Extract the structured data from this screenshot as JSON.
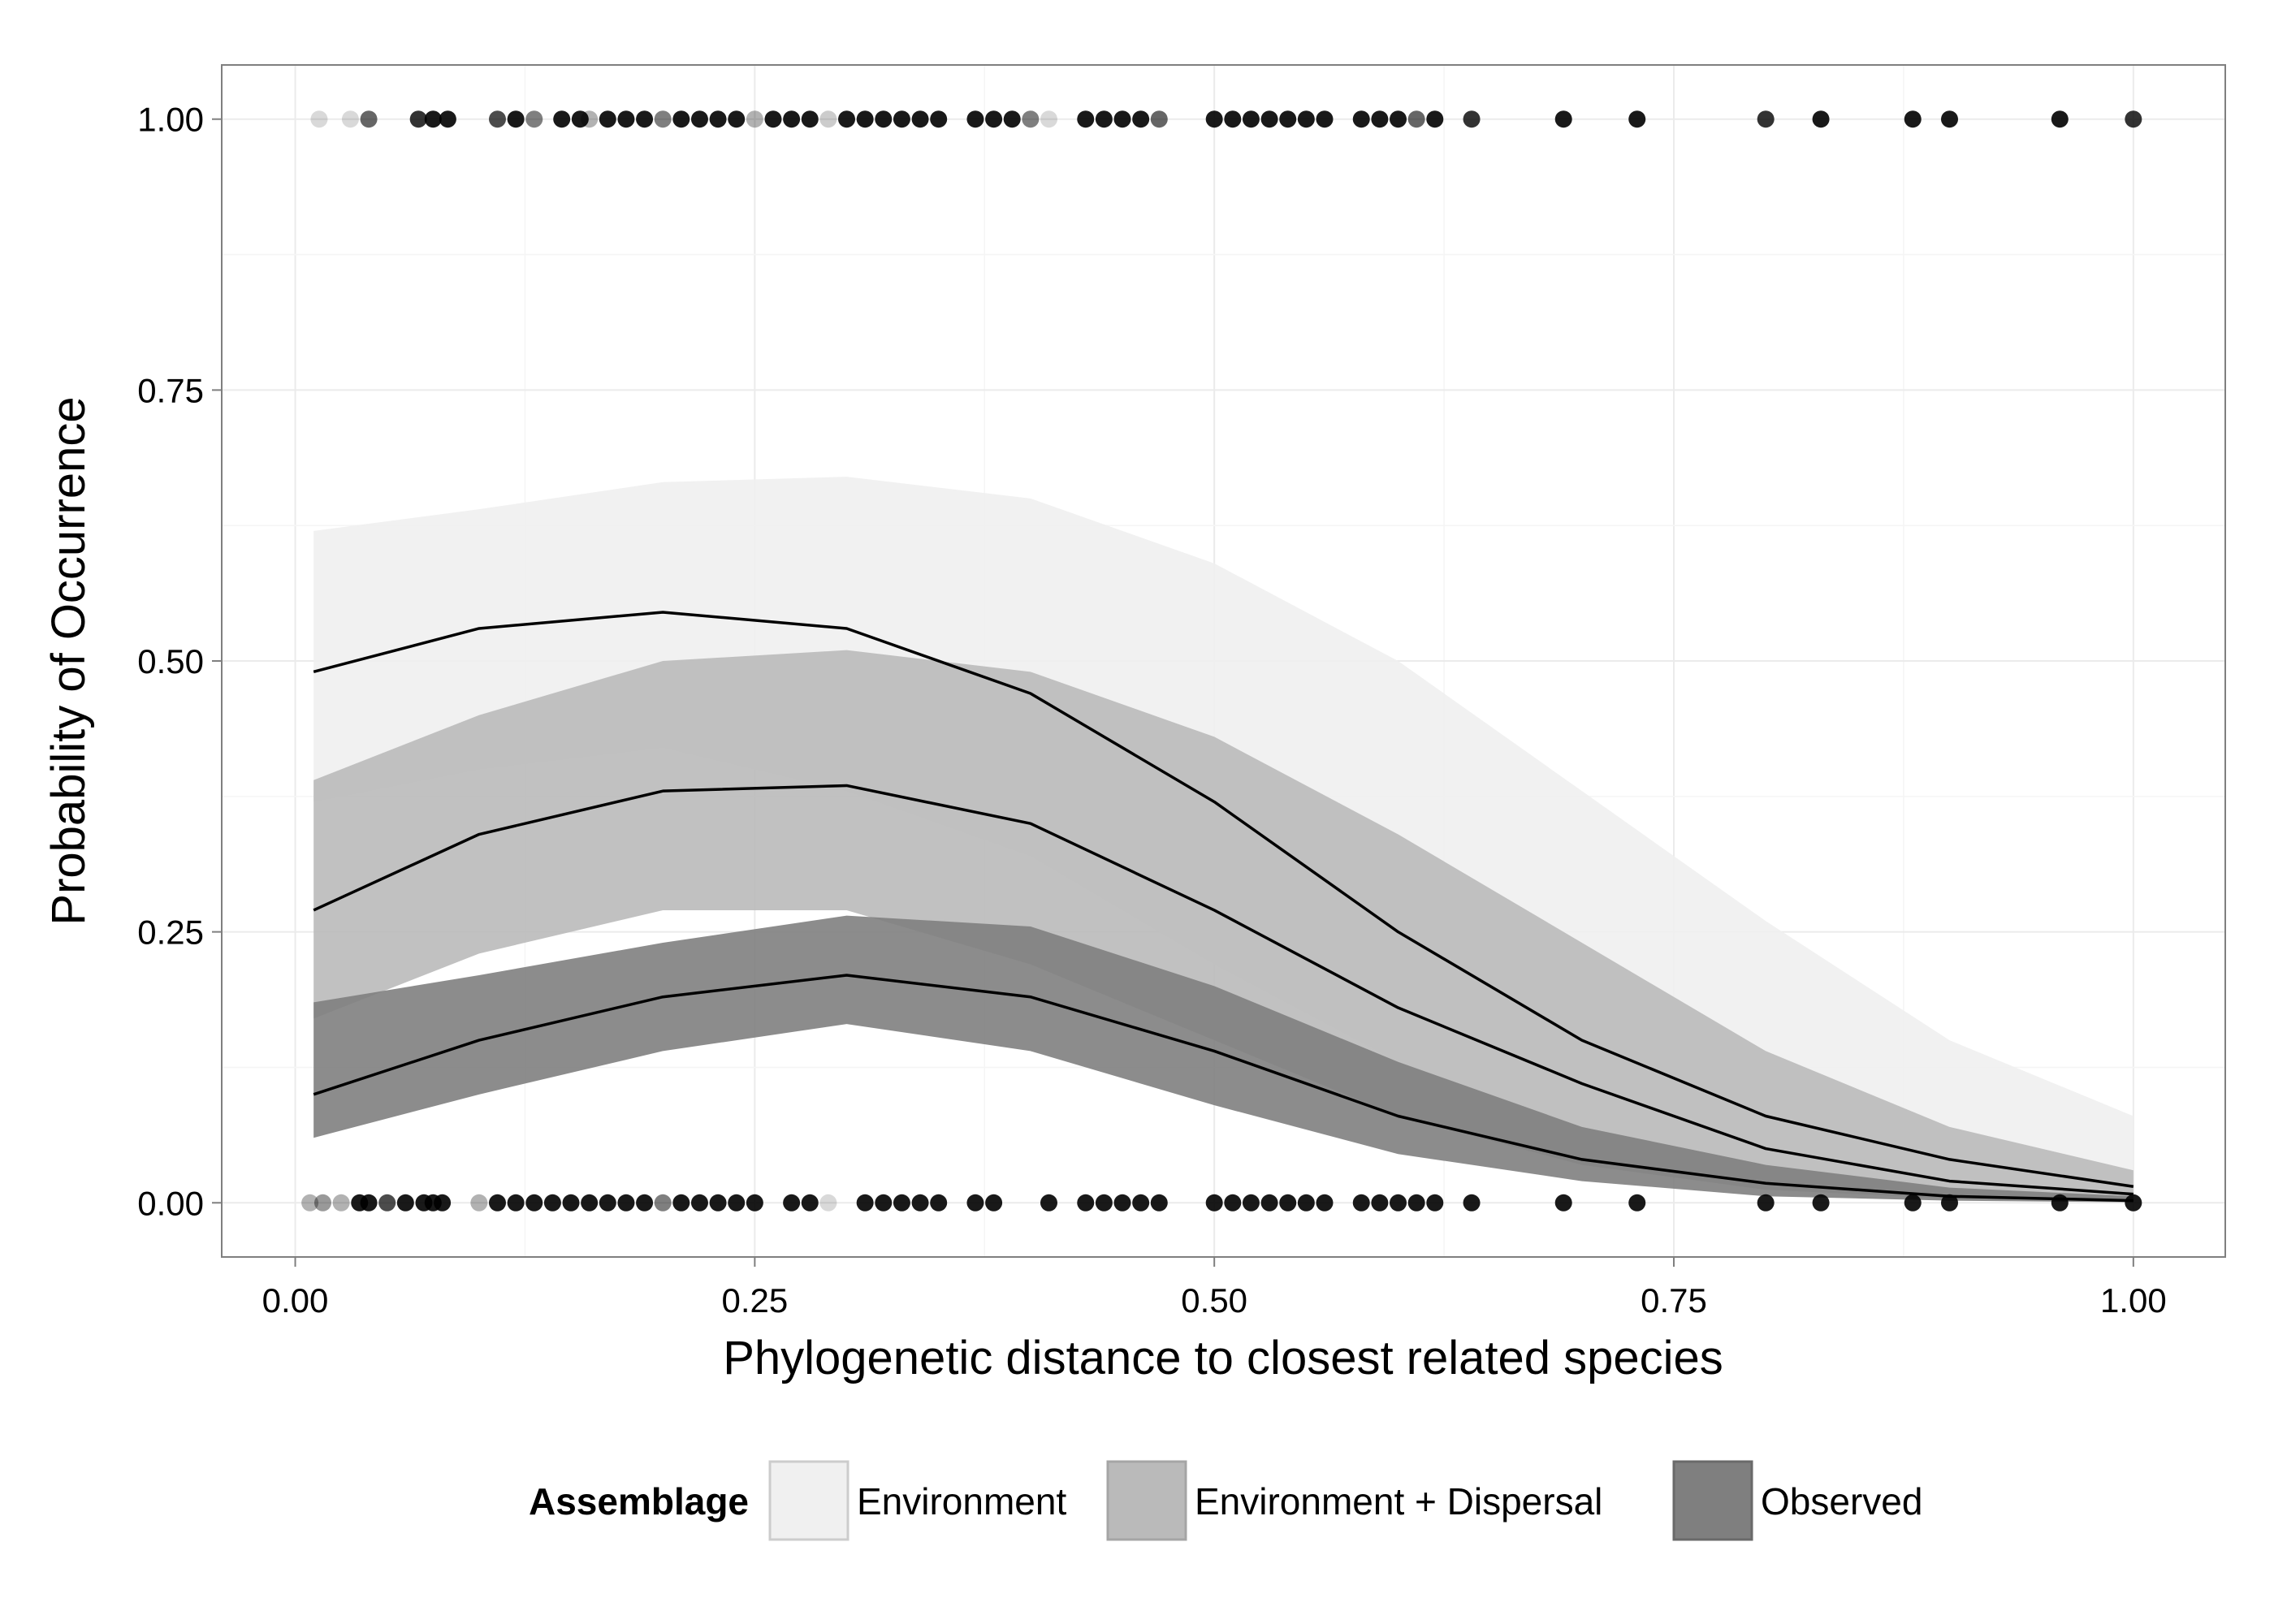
{
  "chart_data": {
    "type": "line",
    "xlabel": "Phylogenetic distance to closest related species",
    "ylabel": "Probability of Occurrence",
    "xlim": [
      -0.04,
      1.05
    ],
    "ylim": [
      -0.05,
      1.05
    ],
    "x_ticks": [
      0,
      0.25,
      0.5,
      0.75,
      1.0
    ],
    "x_tick_labels": [
      "0.00",
      "0.25",
      "0.50",
      "0.75",
      "1.00"
    ],
    "y_ticks": [
      0,
      0.25,
      0.5,
      0.75,
      1.0
    ],
    "y_tick_labels": [
      "0.00",
      "0.25",
      "0.50",
      "0.75",
      "1.00"
    ],
    "grid": true,
    "legend": {
      "title": "Assemblage",
      "placement": "bottom"
    },
    "series": [
      {
        "name": "Environment",
        "fill": "#f0f0f0",
        "x": [
          0.01,
          0.1,
          0.2,
          0.3,
          0.4,
          0.5,
          0.6,
          0.7,
          0.8,
          0.9,
          1.0
        ],
        "fit": [
          0.49,
          0.53,
          0.545,
          0.53,
          0.47,
          0.37,
          0.25,
          0.15,
          0.08,
          0.04,
          0.015
        ],
        "lower": [
          0.37,
          0.4,
          0.42,
          0.38,
          0.32,
          0.22,
          0.13,
          0.07,
          0.03,
          0.01,
          0.003
        ],
        "upper": [
          0.62,
          0.64,
          0.665,
          0.67,
          0.65,
          0.59,
          0.5,
          0.38,
          0.26,
          0.15,
          0.08
        ]
      },
      {
        "name": "Environment + Dispersal",
        "fill": "#bababa",
        "x": [
          0.01,
          0.1,
          0.2,
          0.3,
          0.4,
          0.5,
          0.6,
          0.7,
          0.8,
          0.9,
          1.0
        ],
        "fit": [
          0.27,
          0.34,
          0.38,
          0.385,
          0.35,
          0.27,
          0.18,
          0.11,
          0.05,
          0.02,
          0.008
        ],
        "lower": [
          0.17,
          0.23,
          0.27,
          0.27,
          0.22,
          0.15,
          0.08,
          0.035,
          0.012,
          0.004,
          0.001
        ],
        "upper": [
          0.39,
          0.45,
          0.5,
          0.51,
          0.49,
          0.43,
          0.34,
          0.24,
          0.14,
          0.07,
          0.03
        ]
      },
      {
        "name": "Observed",
        "fill": "#7f7f7f",
        "x": [
          0.01,
          0.1,
          0.2,
          0.3,
          0.4,
          0.5,
          0.6,
          0.7,
          0.8,
          0.9,
          1.0
        ],
        "fit": [
          0.1,
          0.15,
          0.19,
          0.21,
          0.19,
          0.14,
          0.08,
          0.04,
          0.018,
          0.006,
          0.002
        ],
        "lower": [
          0.06,
          0.1,
          0.14,
          0.165,
          0.14,
          0.09,
          0.045,
          0.02,
          0.006,
          0.002,
          0.0005
        ],
        "upper": [
          0.185,
          0.21,
          0.24,
          0.265,
          0.255,
          0.2,
          0.13,
          0.07,
          0.035,
          0.014,
          0.006
        ]
      }
    ],
    "points": {
      "color": "#000000",
      "y1_x": [
        0.013,
        0.03,
        0.04,
        0.067,
        0.075,
        0.083,
        0.11,
        0.12,
        0.13,
        0.145,
        0.155,
        0.16,
        0.17,
        0.18,
        0.19,
        0.2,
        0.21,
        0.22,
        0.23,
        0.24,
        0.25,
        0.26,
        0.27,
        0.28,
        0.29,
        0.3,
        0.31,
        0.32,
        0.33,
        0.34,
        0.35,
        0.37,
        0.38,
        0.39,
        0.4,
        0.41,
        0.43,
        0.44,
        0.45,
        0.46,
        0.47,
        0.5,
        0.51,
        0.52,
        0.53,
        0.54,
        0.55,
        0.56,
        0.58,
        0.59,
        0.6,
        0.61,
        0.62,
        0.64,
        0.69,
        0.73,
        0.8,
        0.83,
        0.88,
        0.9,
        0.96,
        1.0
      ],
      "y1_alpha": [
        0.15,
        0.15,
        0.6,
        0.8,
        0.9,
        0.9,
        0.7,
        0.9,
        0.5,
        0.9,
        0.9,
        0.3,
        0.9,
        0.9,
        0.9,
        0.5,
        0.9,
        0.9,
        0.9,
        0.9,
        0.3,
        0.9,
        0.9,
        0.9,
        0.2,
        0.9,
        0.9,
        0.9,
        0.9,
        0.9,
        0.9,
        0.9,
        0.9,
        0.9,
        0.5,
        0.15,
        0.9,
        0.9,
        0.9,
        0.9,
        0.6,
        0.9,
        0.9,
        0.9,
        0.9,
        0.9,
        0.9,
        0.9,
        0.9,
        0.9,
        0.9,
        0.6,
        0.9,
        0.8,
        0.9,
        0.9,
        0.8,
        0.9,
        0.9,
        0.9,
        0.9,
        0.8
      ],
      "y0_x": [
        0.008,
        0.015,
        0.025,
        0.035,
        0.04,
        0.05,
        0.06,
        0.07,
        0.075,
        0.08,
        0.1,
        0.11,
        0.12,
        0.13,
        0.14,
        0.15,
        0.16,
        0.17,
        0.18,
        0.19,
        0.2,
        0.21,
        0.22,
        0.23,
        0.24,
        0.25,
        0.27,
        0.28,
        0.29,
        0.31,
        0.32,
        0.33,
        0.34,
        0.35,
        0.37,
        0.38,
        0.41,
        0.43,
        0.44,
        0.45,
        0.46,
        0.47,
        0.5,
        0.51,
        0.52,
        0.53,
        0.54,
        0.55,
        0.56,
        0.58,
        0.59,
        0.6,
        0.61,
        0.62,
        0.64,
        0.69,
        0.73,
        0.8,
        0.83,
        0.88,
        0.9,
        0.96,
        1.0
      ],
      "y0_alpha": [
        0.3,
        0.4,
        0.3,
        0.9,
        0.9,
        0.7,
        0.9,
        0.9,
        0.9,
        0.9,
        0.3,
        0.9,
        0.9,
        0.9,
        0.9,
        0.9,
        0.9,
        0.9,
        0.9,
        0.9,
        0.5,
        0.9,
        0.9,
        0.9,
        0.9,
        0.9,
        0.9,
        0.9,
        0.15,
        0.9,
        0.9,
        0.9,
        0.9,
        0.9,
        0.9,
        0.9,
        0.9,
        0.9,
        0.9,
        0.9,
        0.9,
        0.9,
        0.9,
        0.9,
        0.9,
        0.9,
        0.9,
        0.9,
        0.9,
        0.9,
        0.9,
        0.9,
        0.9,
        0.9,
        0.9,
        0.9,
        0.9,
        0.9,
        0.9,
        0.9,
        0.9,
        0.9,
        0.9
      ]
    }
  }
}
